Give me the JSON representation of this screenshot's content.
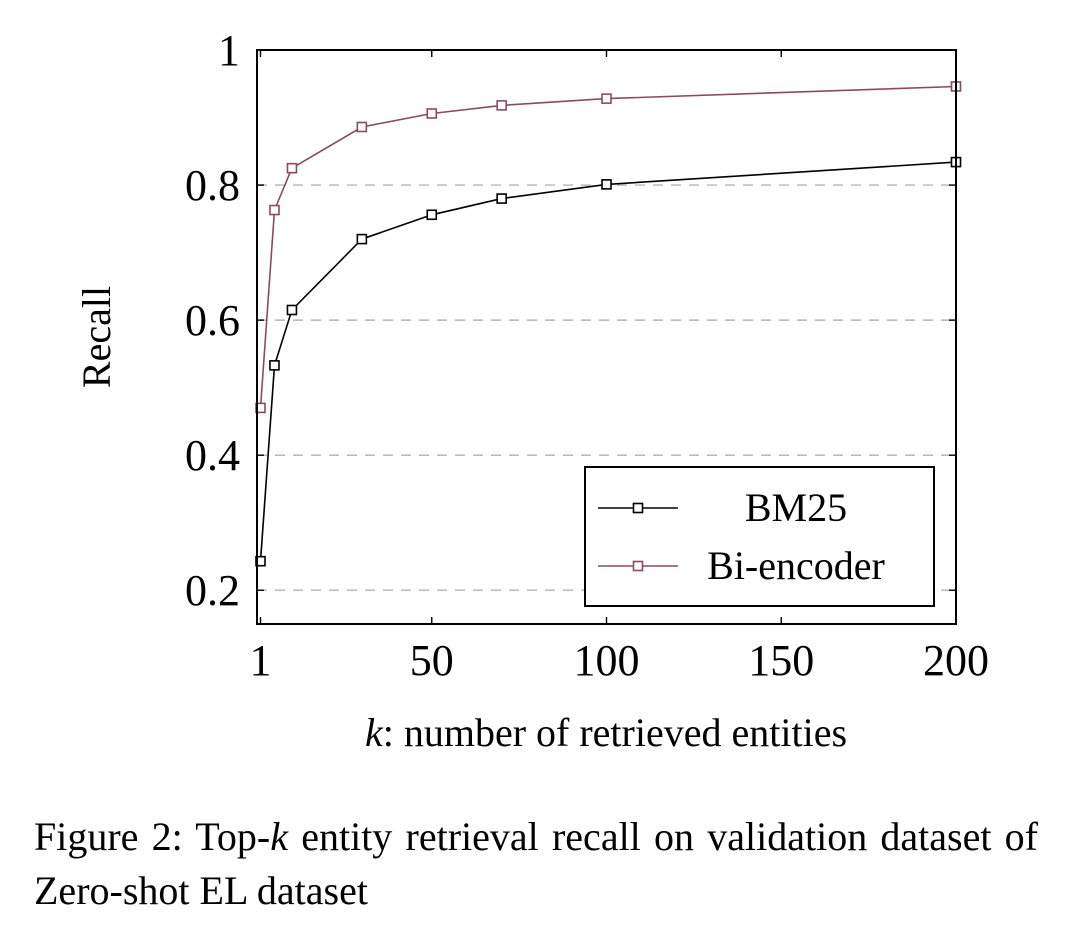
{
  "chart_data": {
    "type": "line",
    "title": "",
    "xlabel_var": "k",
    "xlabel_rest": ": number of retrieved entities",
    "ylabel": "Recall",
    "xlim": [
      0,
      200
    ],
    "ylim": [
      0.15,
      1.0
    ],
    "xticks": [
      1,
      50,
      100,
      150,
      200
    ],
    "yticks": [
      0.2,
      0.4,
      0.6,
      0.8,
      1.0
    ],
    "ytick_labels": [
      "0.2",
      "0.4",
      "0.6",
      "0.8",
      "1"
    ],
    "grid": "horizontal-dashed",
    "legend_position": "bottom-right",
    "x": [
      1,
      5,
      10,
      30,
      50,
      70,
      100,
      200
    ],
    "series": [
      {
        "name": "BM25",
        "color": "#000000",
        "marker": "square",
        "values": [
          0.243,
          0.533,
          0.615,
          0.72,
          0.756,
          0.78,
          0.801,
          0.834
        ]
      },
      {
        "name": "Bi-encoder",
        "color": "#8b4a62",
        "marker": "square",
        "values": [
          0.47,
          0.763,
          0.825,
          0.886,
          0.906,
          0.918,
          0.928,
          0.946
        ]
      }
    ]
  },
  "caption": {
    "prefix": "Figure 2:  Top-",
    "var": "k",
    "rest": " entity retrieval recall on validation dataset of Zero-shot EL dataset"
  }
}
